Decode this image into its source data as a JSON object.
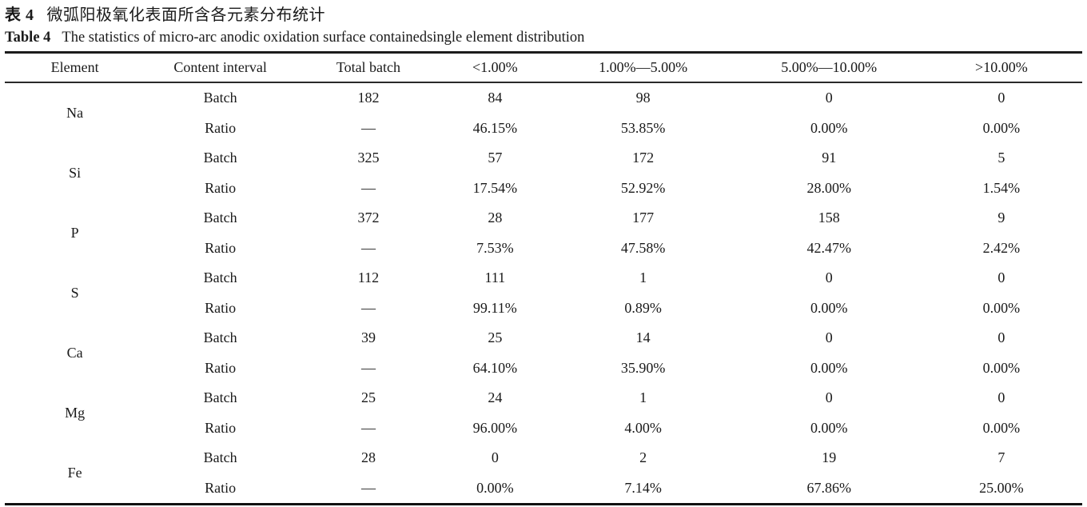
{
  "page": {
    "background": "#ffffff",
    "text_color": "#1a1a1a"
  },
  "titles": {
    "cn_label": "表 4",
    "cn_text": "微弧阳极氧化表面所含各元素分布统计",
    "en_label": "Table 4",
    "en_text": "The statistics of micro-arc anodic oxidation surface containedsingle element distribution"
  },
  "table": {
    "headers": [
      "Element",
      "Content interval",
      "Total batch",
      "<1.00%",
      "1.00%—5.00%",
      "5.00%—10.00%",
      ">10.00%"
    ],
    "row_labels": {
      "batch": "Batch",
      "ratio": "Ratio"
    },
    "elements": [
      {
        "symbol": "Na",
        "batch": [
          "182",
          "84",
          "98",
          "0",
          "0"
        ],
        "ratio": [
          "—",
          "46.15%",
          "53.85%",
          "0.00%",
          "0.00%"
        ]
      },
      {
        "symbol": "Si",
        "batch": [
          "325",
          "57",
          "172",
          "91",
          "5"
        ],
        "ratio": [
          "—",
          "17.54%",
          "52.92%",
          "28.00%",
          "1.54%"
        ]
      },
      {
        "symbol": "P",
        "batch": [
          "372",
          "28",
          "177",
          "158",
          "9"
        ],
        "ratio": [
          "—",
          "7.53%",
          "47.58%",
          "42.47%",
          "2.42%"
        ]
      },
      {
        "symbol": "S",
        "batch": [
          "112",
          "111",
          "1",
          "0",
          "0"
        ],
        "ratio": [
          "—",
          "99.11%",
          "0.89%",
          "0.00%",
          "0.00%"
        ]
      },
      {
        "symbol": "Ca",
        "batch": [
          "39",
          "25",
          "14",
          "0",
          "0"
        ],
        "ratio": [
          "—",
          "64.10%",
          "35.90%",
          "0.00%",
          "0.00%"
        ]
      },
      {
        "symbol": "Mg",
        "batch": [
          "25",
          "24",
          "1",
          "0",
          "0"
        ],
        "ratio": [
          "—",
          "96.00%",
          "4.00%",
          "0.00%",
          "0.00%"
        ]
      },
      {
        "symbol": "Fe",
        "batch": [
          "28",
          "0",
          "2",
          "19",
          "7"
        ],
        "ratio": [
          "—",
          "0.00%",
          "7.14%",
          "67.86%",
          "25.00%"
        ]
      }
    ]
  }
}
